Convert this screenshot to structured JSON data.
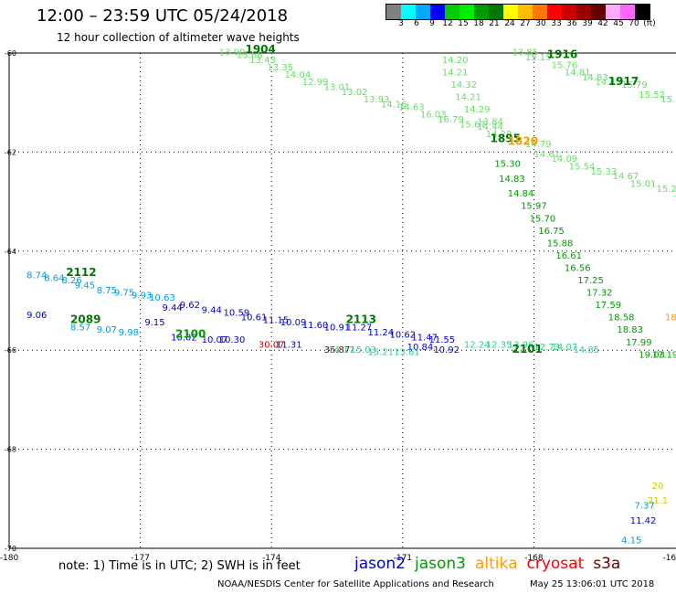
{
  "title": "12:00 – 23:59 UTC 05/24/2018",
  "subtitle": "12 hour collection of altimeter wave heights",
  "legend": {
    "colors": [
      "#808080",
      "#00ffff",
      "#00aaff",
      "#0000ff",
      "#00cc00",
      "#00ee00",
      "#009900",
      "#007700",
      "#ffff00",
      "#ffbb00",
      "#ff7700",
      "#ff0000",
      "#cc0000",
      "#990000",
      "#660000",
      "#ffaaff",
      "#ff66ff",
      "#000000"
    ],
    "labels": [
      "3",
      "6",
      "9",
      "12",
      "15",
      "18",
      "21",
      "24",
      "27",
      "30",
      "33",
      "36",
      "39",
      "42",
      "45",
      "70",
      "(ft)"
    ]
  },
  "axes": {
    "lon_ticks": [
      "-180",
      "-177",
      "-174",
      "-171",
      "-168",
      "-16"
    ],
    "lat_ticks": [
      "-60",
      "-62",
      "-64",
      "-66",
      "-68",
      "-70"
    ]
  },
  "tracks": [
    {
      "mission": "jason3",
      "color": "#66dd66",
      "time": "1904",
      "labels": [
        {
          "lon": -175.2,
          "lat": -60.05,
          "text": "13.90"
        },
        {
          "lon": -174.8,
          "lat": -60.1,
          "text": "13.66"
        },
        {
          "lon": -174.5,
          "lat": -60.2,
          "text": "13.43"
        },
        {
          "lon": -174.1,
          "lat": -60.35,
          "text": "13.35"
        },
        {
          "lon": -173.7,
          "lat": -60.5,
          "text": "14.04"
        },
        {
          "lon": -173.3,
          "lat": -60.65,
          "text": "12.99"
        },
        {
          "lon": -172.8,
          "lat": -60.75,
          "text": "13.01"
        },
        {
          "lon": -172.4,
          "lat": -60.85,
          "text": "13.02"
        },
        {
          "lon": -171.9,
          "lat": -61.0,
          "text": "13.93"
        },
        {
          "lon": -171.5,
          "lat": -61.1,
          "text": "14.16"
        },
        {
          "lon": -171.1,
          "lat": -61.15,
          "text": "14.63"
        },
        {
          "lon": -170.6,
          "lat": -61.3,
          "text": "16.03"
        },
        {
          "lon": -170.2,
          "lat": -61.4,
          "text": "16.79"
        },
        {
          "lon": -169.7,
          "lat": -61.5,
          "text": "15.67"
        },
        {
          "lon": -169.3,
          "lat": -61.55,
          "text": "14.44"
        },
        {
          "lon": -169.1,
          "lat": -61.7,
          "text": "14.29"
        }
      ]
    },
    {
      "mission": "jason3",
      "color": "#66dd66",
      "time": "1916",
      "labels": [
        {
          "lon": -168.5,
          "lat": -60.05,
          "text": "13.85"
        },
        {
          "lon": -168.2,
          "lat": -60.15,
          "text": "15.15"
        },
        {
          "lon": -167.6,
          "lat": -60.3,
          "text": "15.76"
        },
        {
          "lon": -167.3,
          "lat": -60.45,
          "text": "14.81"
        },
        {
          "lon": -166.9,
          "lat": -60.55,
          "text": "14.83"
        },
        {
          "lon": -170.1,
          "lat": -60.2,
          "text": "14.20"
        },
        {
          "lon": -170.1,
          "lat": -60.45,
          "text": "14.21"
        },
        {
          "lon": -169.9,
          "lat": -60.7,
          "text": "14.32"
        },
        {
          "lon": -169.8,
          "lat": -60.95,
          "text": "14.21"
        },
        {
          "lon": -169.6,
          "lat": -61.2,
          "text": "14.29"
        },
        {
          "lon": -169.3,
          "lat": -61.45,
          "text": "13.84"
        },
        {
          "lon": -168.2,
          "lat": -61.9,
          "text": "14.79"
        },
        {
          "lon": -168.0,
          "lat": -62.1,
          "text": "14.61"
        },
        {
          "lon": -167.6,
          "lat": -62.2,
          "text": "14.09"
        },
        {
          "lon": -167.2,
          "lat": -62.35,
          "text": "15.54"
        },
        {
          "lon": -166.7,
          "lat": -62.45,
          "text": "15.33"
        },
        {
          "lon": -166.2,
          "lat": -62.55,
          "text": "14.67"
        },
        {
          "lon": -165.8,
          "lat": -62.7,
          "text": "15.01"
        },
        {
          "lon": -165.2,
          "lat": -62.8,
          "text": "15.22"
        },
        {
          "lon": -164.8,
          "lat": -62.9,
          "text": "14.0"
        }
      ]
    },
    {
      "mission": "jason3",
      "color": "#66dd66",
      "time": "1917",
      "labels": [
        {
          "lon": -166.6,
          "lat": -60.65,
          "text": "14.45"
        },
        {
          "lon": -166.0,
          "lat": -60.7,
          "text": "15.79"
        },
        {
          "lon": -165.6,
          "lat": -60.9,
          "text": "15.52"
        },
        {
          "lon": -165.1,
          "lat": -61.0,
          "text": "15.18"
        },
        {
          "lon": -164.6,
          "lat": -61.1,
          "text": "15.51"
        }
      ]
    },
    {
      "mission": "jason3",
      "color": "#009900",
      "time": "1895",
      "labels": [
        {
          "lon": -168.9,
          "lat": -62.3,
          "text": "15.30"
        },
        {
          "lon": -168.8,
          "lat": -62.6,
          "text": "14.83"
        },
        {
          "lon": -168.6,
          "lat": -62.9,
          "text": "14.84"
        },
        {
          "lon": -168.3,
          "lat": -63.15,
          "text": "15.97"
        },
        {
          "lon": -168.1,
          "lat": -63.4,
          "text": "15.70"
        },
        {
          "lon": -167.9,
          "lat": -63.65,
          "text": "16.75"
        },
        {
          "lon": -167.7,
          "lat": -63.9,
          "text": "15.88"
        },
        {
          "lon": -167.5,
          "lat": -64.15,
          "text": "16.61"
        },
        {
          "lon": -167.3,
          "lat": -64.4,
          "text": "16.56"
        },
        {
          "lon": -167.0,
          "lat": -64.65,
          "text": "17.25"
        },
        {
          "lon": -166.8,
          "lat": -64.9,
          "text": "17.32"
        },
        {
          "lon": -166.6,
          "lat": -65.15,
          "text": "17.59"
        },
        {
          "lon": -166.3,
          "lat": -65.4,
          "text": "18.58"
        },
        {
          "lon": -166.1,
          "lat": -65.65,
          "text": "18.83"
        },
        {
          "lon": -165.9,
          "lat": -65.9,
          "text": "17.99"
        },
        {
          "lon": -165.6,
          "lat": -66.15,
          "text": "19.03"
        },
        {
          "lon": -165.3,
          "lat": -66.15,
          "text": "17.19"
        }
      ]
    },
    {
      "mission": "altika",
      "color": "#ff9900",
      "time": "1820",
      "labels": [
        {
          "lon": -165.0,
          "lat": -65.4,
          "text": "181"
        }
      ]
    },
    {
      "mission": "jason2",
      "color": "#0000cc",
      "time": "",
      "labels": [
        {
          "lon": -179.6,
          "lat": -65.35,
          "text": "9.06"
        },
        {
          "lon": -176.9,
          "lat": -65.5,
          "text": "9.15"
        },
        {
          "lon": -176.5,
          "lat": -65.2,
          "text": "9.44"
        },
        {
          "lon": -176.1,
          "lat": -65.15,
          "text": "9.62"
        },
        {
          "lon": -175.6,
          "lat": -65.25,
          "text": "9.44"
        },
        {
          "lon": -175.1,
          "lat": -65.3,
          "text": "10.59"
        },
        {
          "lon": -174.7,
          "lat": -65.4,
          "text": "10.61"
        },
        {
          "lon": -174.2,
          "lat": -65.45,
          "text": "11.15"
        },
        {
          "lon": -173.8,
          "lat": -65.5,
          "text": "10.09"
        },
        {
          "lon": -173.3,
          "lat": -65.55,
          "text": "11.60"
        },
        {
          "lon": -172.8,
          "lat": -65.6,
          "text": "10.91"
        },
        {
          "lon": -172.3,
          "lat": -65.6,
          "text": "11.27"
        },
        {
          "lon": -171.8,
          "lat": -65.7,
          "text": "11.24"
        },
        {
          "lon": -171.3,
          "lat": -65.75,
          "text": "10.62"
        },
        {
          "lon": -170.8,
          "lat": -65.8,
          "text": "11.47"
        },
        {
          "lon": -170.4,
          "lat": -65.85,
          "text": "11.55"
        },
        {
          "lon": -176.3,
          "lat": -65.8,
          "text": "10.02"
        },
        {
          "lon": -175.6,
          "lat": -65.85,
          "text": "10.07"
        },
        {
          "lon": -175.2,
          "lat": -65.85,
          "text": "10.30"
        },
        {
          "lon": -173.9,
          "lat": -65.95,
          "text": "11.31"
        },
        {
          "lon": -170.9,
          "lat": -66.0,
          "text": "10.84"
        },
        {
          "lon": -170.3,
          "lat": -66.05,
          "text": "10.92"
        },
        {
          "lon": -165.8,
          "lat": -69.5,
          "text": "11.42"
        }
      ]
    },
    {
      "mission": "jason2",
      "color": "#0099dd",
      "time": "",
      "labels": [
        {
          "lon": -179.6,
          "lat": -64.55,
          "text": "8.74"
        },
        {
          "lon": -179.2,
          "lat": -64.6,
          "text": "8.64"
        },
        {
          "lon": -178.8,
          "lat": -64.65,
          "text": "8.26"
        },
        {
          "lon": -178.5,
          "lat": -64.75,
          "text": "9.45"
        },
        {
          "lon": -178.0,
          "lat": -64.85,
          "text": "8.75"
        },
        {
          "lon": -177.6,
          "lat": -64.9,
          "text": "9.75"
        },
        {
          "lon": -177.2,
          "lat": -64.95,
          "text": "9.93"
        },
        {
          "lon": -176.8,
          "lat": -65.0,
          "text": "10.63"
        },
        {
          "lon": -178.6,
          "lat": -65.6,
          "text": "8.57"
        },
        {
          "lon": -178.0,
          "lat": -65.65,
          "text": "9.07"
        },
        {
          "lon": -177.5,
          "lat": -65.7,
          "text": "9.98"
        },
        {
          "lon": -165.7,
          "lat": -69.2,
          "text": "7.37"
        },
        {
          "lon": -166.0,
          "lat": -69.9,
          "text": "4.15"
        }
      ]
    },
    {
      "mission": "cryosat",
      "color": "#cc0000",
      "time": "",
      "labels": [
        {
          "lon": -174.3,
          "lat": -65.95,
          "text": "30.07"
        }
      ]
    },
    {
      "mission": "s3a",
      "color": "#660000",
      "time": "",
      "labels": [
        {
          "lon": -172.8,
          "lat": -66.05,
          "text": "36.87"
        }
      ]
    },
    {
      "mission": "jason3",
      "color": "#33cc88",
      "time": "",
      "labels": [
        {
          "lon": -172.7,
          "lat": -66.05,
          "text": "14.17"
        },
        {
          "lon": -172.2,
          "lat": -66.05,
          "text": "15.03"
        },
        {
          "lon": -171.8,
          "lat": -66.1,
          "text": "15.21"
        },
        {
          "lon": -171.2,
          "lat": -66.1,
          "text": "13.61"
        },
        {
          "lon": -169.6,
          "lat": -65.95,
          "text": "12.24"
        },
        {
          "lon": -169.1,
          "lat": -65.95,
          "text": "12.35"
        },
        {
          "lon": -168.6,
          "lat": -65.95,
          "text": "13.96"
        },
        {
          "lon": -168.0,
          "lat": -66.0,
          "text": "12.73"
        },
        {
          "lon": -167.6,
          "lat": -66.0,
          "text": "14.07"
        },
        {
          "lon": -167.1,
          "lat": -66.05,
          "text": "14.85"
        }
      ]
    },
    {
      "mission": "jason3",
      "color": "#cccc00",
      "time": "",
      "labels": [
        {
          "lon": -165.4,
          "lat": -69.1,
          "text": "21.1"
        },
        {
          "lon": -165.3,
          "lat": -68.8,
          "text": "20"
        }
      ]
    }
  ],
  "time_labels": [
    {
      "lon": -174.6,
      "lat": -60.0,
      "text": "1904",
      "color": "#007700"
    },
    {
      "lon": -167.7,
      "lat": -60.1,
      "text": "1916",
      "color": "#007700"
    },
    {
      "lon": -166.3,
      "lat": -60.65,
      "text": "1917",
      "color": "#007700"
    },
    {
      "lon": -169.0,
      "lat": -61.8,
      "text": "1895",
      "color": "#007700"
    },
    {
      "lon": -168.6,
      "lat": -61.85,
      "text": "1820",
      "color": "#ff9900"
    },
    {
      "lon": -178.7,
      "lat": -64.5,
      "text": "2112",
      "color": "#007700"
    },
    {
      "lon": -172.3,
      "lat": -65.45,
      "text": "2113",
      "color": "#007700"
    },
    {
      "lon": -178.6,
      "lat": -65.45,
      "text": "2089",
      "color": "#007700"
    },
    {
      "lon": -176.2,
      "lat": -65.75,
      "text": "2100",
      "color": "#009900"
    },
    {
      "lon": -168.5,
      "lat": -66.05,
      "text": "2101",
      "color": "#007700"
    }
  ],
  "note": "note:  1) Time is in UTC;  2) SWH is in feet",
  "missions": [
    {
      "name": "jason2",
      "color": "#0000cc"
    },
    {
      "name": "jason3",
      "color": "#009900"
    },
    {
      "name": "altika",
      "color": "#ff9900"
    },
    {
      "name": "cryosat",
      "color": "#ff0000"
    },
    {
      "name": "s3a",
      "color": "#660000"
    }
  ],
  "credit": "NOAA/NESDIS Center for Satellite Applications and Research",
  "timestamp": "May 25 13:06:01 UTC 2018"
}
